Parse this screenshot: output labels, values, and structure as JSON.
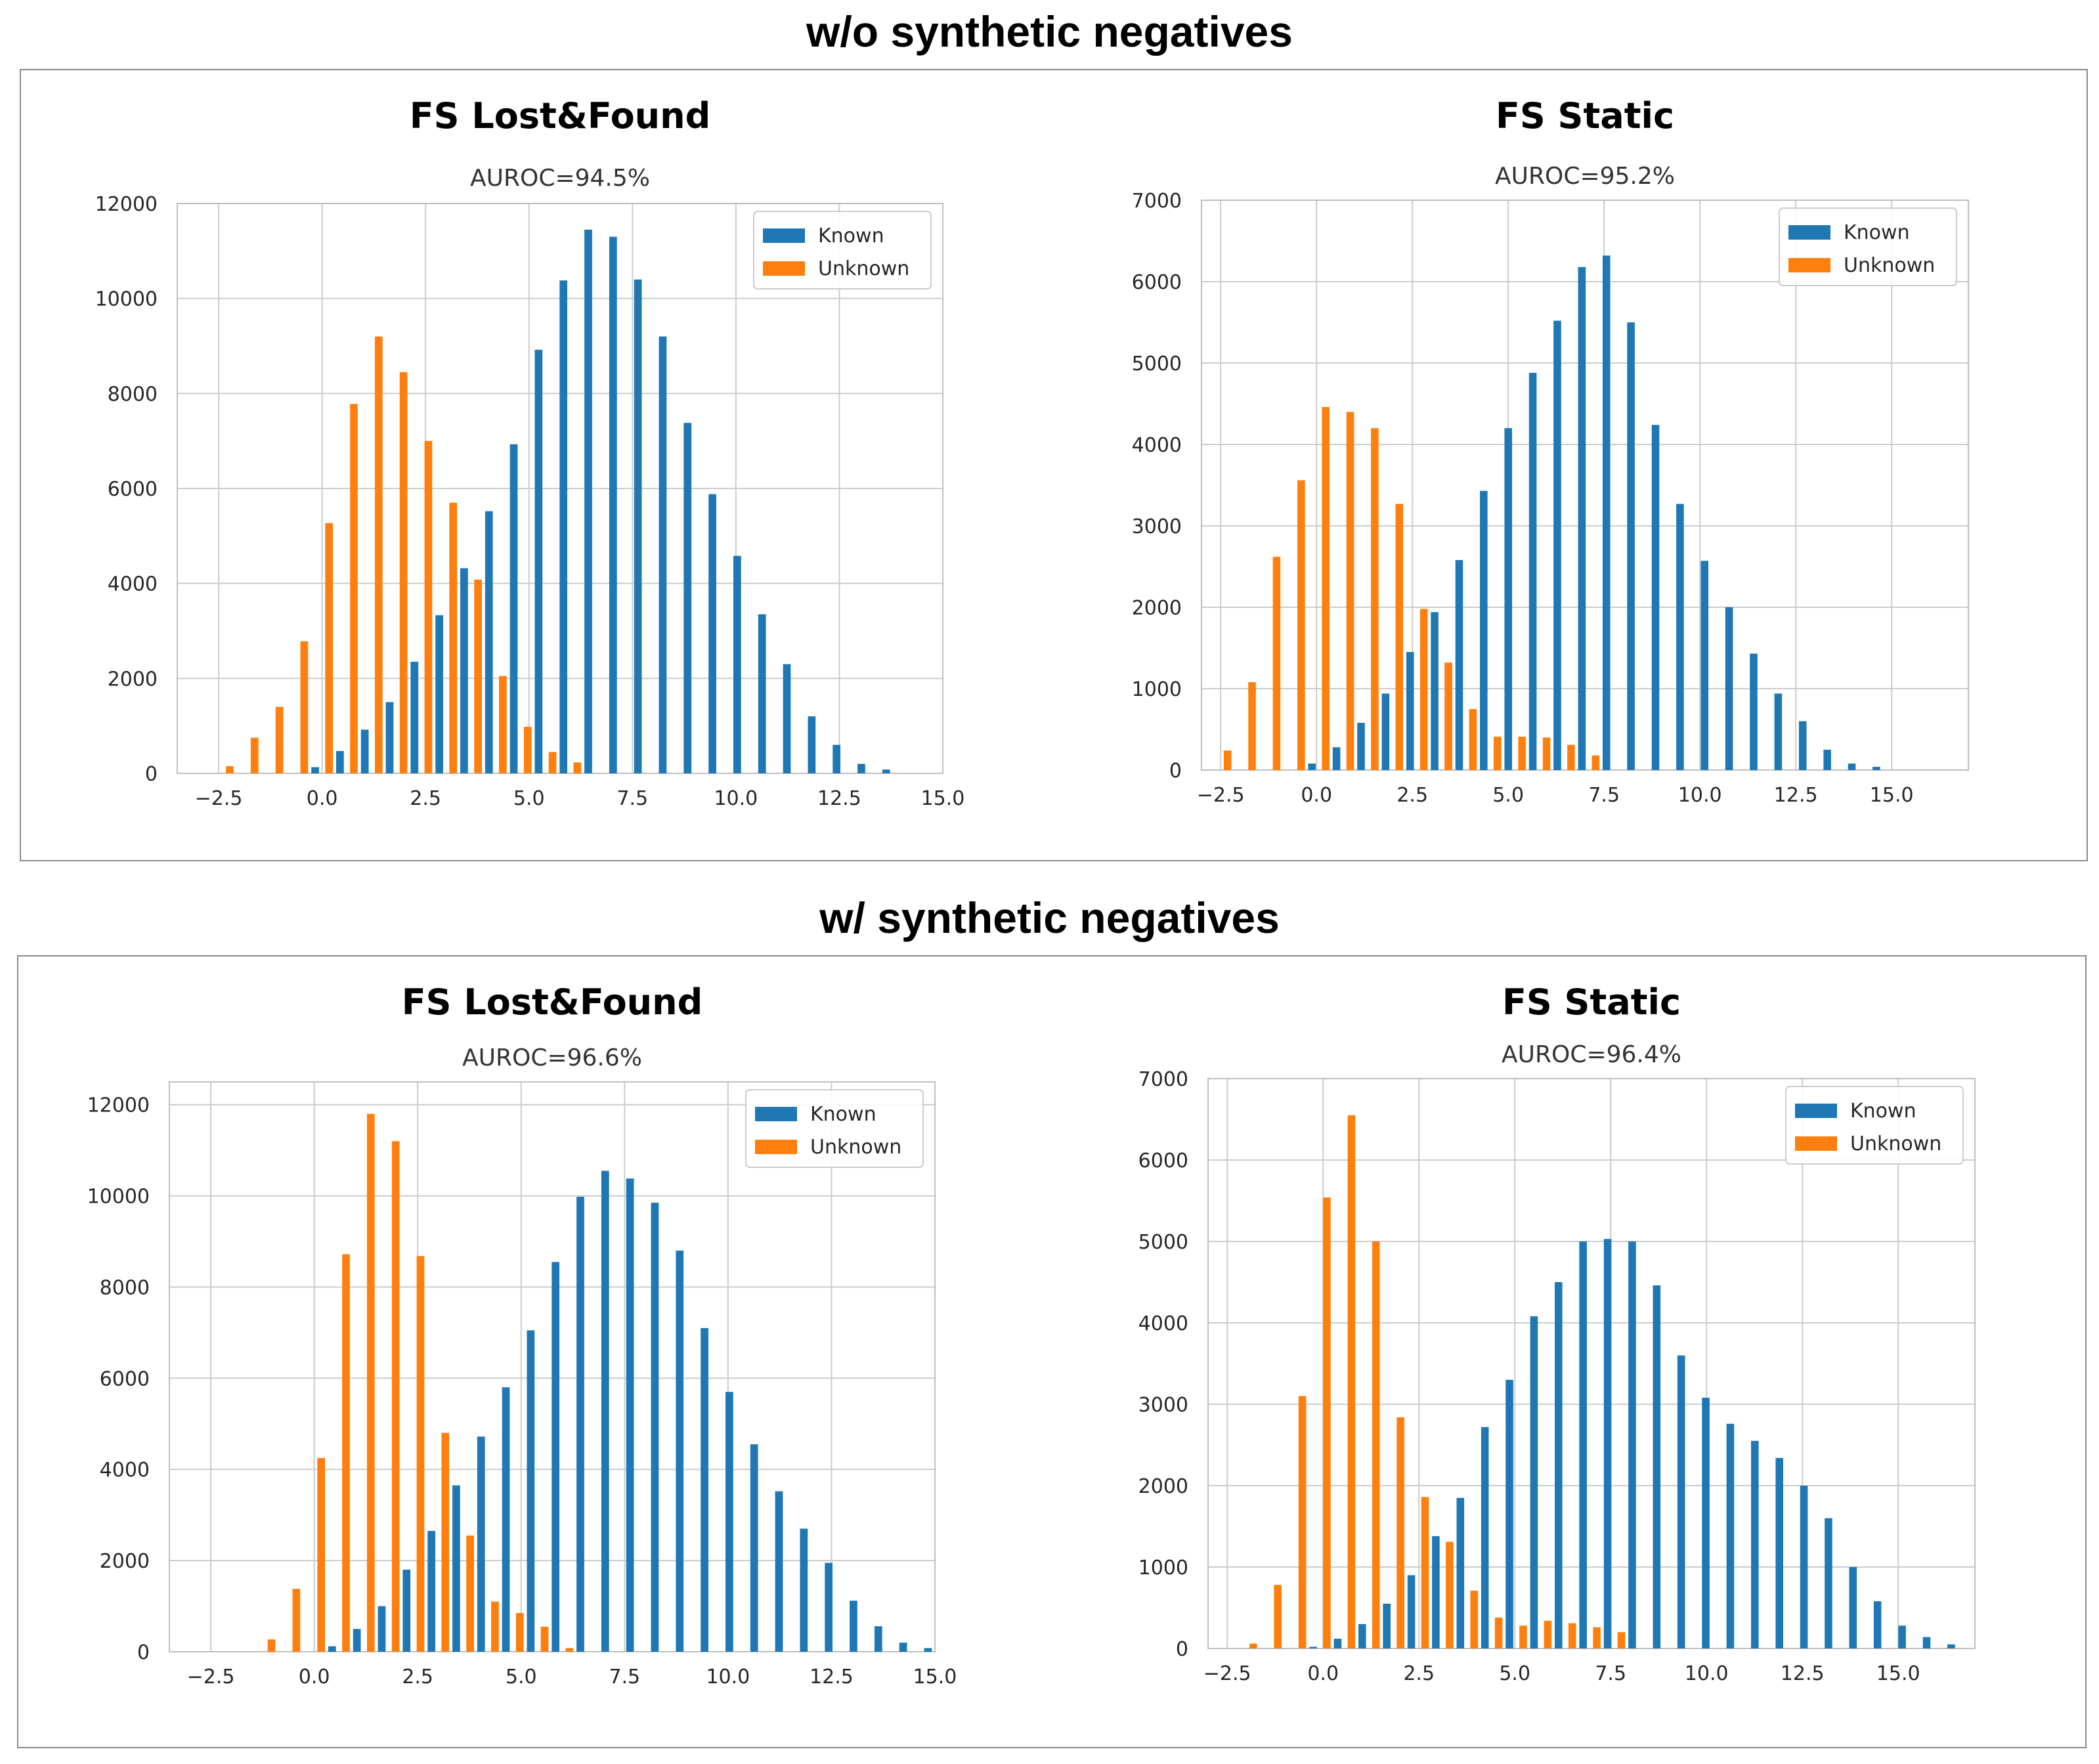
{
  "sections": [
    {
      "title": "w/o synthetic negatives"
    },
    {
      "title": "w/ synthetic negatives"
    }
  ],
  "colors": {
    "known": "#1f77b4",
    "unknown": "#ff7f0e",
    "grid": "#cccccc",
    "tick_text": "#262626",
    "title_text": "#000000"
  },
  "chart_data": [
    {
      "type": "bar",
      "title": "FS Lost&Found",
      "subtitle": "AUROC=94.5%",
      "xlim": [
        -3.5,
        15.0
      ],
      "ylim": [
        0,
        12000
      ],
      "xticks": [
        "−2.5",
        "0.0",
        "2.5",
        "5.0",
        "7.5",
        "10.0",
        "12.5",
        "15.0"
      ],
      "xtick_values": [
        -2.5,
        0.0,
        2.5,
        5.0,
        7.5,
        10.0,
        12.5,
        15.0
      ],
      "yticks": [
        "0",
        "2000",
        "4000",
        "6000",
        "8000",
        "10000",
        "12000"
      ],
      "ytick_values": [
        0,
        2000,
        4000,
        6000,
        8000,
        10000,
        12000
      ],
      "bin_start": -3.0,
      "bin_width": 0.6,
      "legend": {
        "position": "top-right",
        "entries": [
          "Known",
          "Unknown"
        ]
      },
      "series": [
        {
          "name": "Known",
          "values": [
            0,
            0,
            0,
            0,
            130,
            470,
            920,
            1500,
            2350,
            3330,
            4320,
            5520,
            6930,
            8920,
            10380,
            11450,
            11300,
            10400,
            9200,
            7380,
            5880,
            4580,
            3350,
            2300,
            1200,
            600,
            200,
            80,
            0,
            0
          ]
        },
        {
          "name": "Unknown",
          "values": [
            0,
            150,
            750,
            1400,
            2780,
            5270,
            7780,
            9200,
            8450,
            7000,
            5700,
            4080,
            2050,
            980,
            450,
            230,
            0,
            0,
            0,
            0,
            0,
            0,
            0,
            0,
            0,
            0,
            0,
            0,
            0,
            0
          ]
        }
      ]
    },
    {
      "type": "bar",
      "title": "FS Static",
      "subtitle": "AUROC=95.2%",
      "xlim": [
        -3.0,
        17.0
      ],
      "ylim": [
        0,
        7000
      ],
      "xticks": [
        "−2.5",
        "0.0",
        "2.5",
        "5.0",
        "7.5",
        "10.0",
        "12.5",
        "15.0"
      ],
      "xtick_values": [
        -2.5,
        0.0,
        2.5,
        5.0,
        7.5,
        10.0,
        12.5,
        15.0
      ],
      "yticks": [
        "0",
        "1000",
        "2000",
        "3000",
        "4000",
        "5000",
        "6000",
        "7000"
      ],
      "ytick_values": [
        0,
        1000,
        2000,
        3000,
        4000,
        5000,
        6000,
        7000
      ],
      "bin_start": -2.5,
      "bin_width": 0.64,
      "legend": {
        "position": "top-right",
        "entries": [
          "Known",
          "Unknown"
        ]
      },
      "series": [
        {
          "name": "Known",
          "values": [
            0,
            0,
            0,
            80,
            280,
            580,
            940,
            1450,
            1940,
            2580,
            3430,
            4200,
            4880,
            5520,
            6180,
            6320,
            5500,
            4240,
            3270,
            2570,
            2000,
            1430,
            940,
            600,
            250,
            80,
            40,
            0,
            0,
            0
          ]
        },
        {
          "name": "Unknown",
          "values": [
            240,
            1080,
            2620,
            3560,
            4460,
            4400,
            4200,
            3270,
            1980,
            1320,
            750,
            410,
            410,
            400,
            310,
            180,
            0,
            0,
            0,
            0,
            0,
            0,
            0,
            0,
            0,
            0,
            0,
            0,
            0,
            0
          ]
        }
      ]
    },
    {
      "type": "bar",
      "title": "FS Lost&Found",
      "subtitle": "AUROC=96.6%",
      "xlim": [
        -3.5,
        15.0
      ],
      "ylim": [
        0,
        12500
      ],
      "xticks": [
        "−2.5",
        "0.0",
        "2.5",
        "5.0",
        "7.5",
        "10.0",
        "12.5",
        "15.0"
      ],
      "xtick_values": [
        -2.5,
        0.0,
        2.5,
        5.0,
        7.5,
        10.0,
        12.5,
        15.0
      ],
      "yticks": [
        "0",
        "2000",
        "4000",
        "6000",
        "8000",
        "10000",
        "12000"
      ],
      "ytick_values": [
        0,
        2000,
        4000,
        6000,
        8000,
        10000,
        12000
      ],
      "bin_start": -3.0,
      "bin_width": 0.6,
      "legend": {
        "position": "top-right",
        "entries": [
          "Known",
          "Unknown"
        ]
      },
      "series": [
        {
          "name": "Known",
          "values": [
            0,
            0,
            0,
            0,
            0,
            120,
            500,
            1000,
            1800,
            2650,
            3650,
            4720,
            5800,
            7050,
            8550,
            9980,
            10550,
            10380,
            9850,
            8800,
            7100,
            5700,
            4550,
            3520,
            2700,
            1950,
            1120,
            560,
            200,
            80
          ]
        },
        {
          "name": "Unknown",
          "values": [
            0,
            0,
            0,
            270,
            1380,
            4250,
            8720,
            11800,
            11200,
            8680,
            4800,
            2550,
            1100,
            850,
            550,
            80,
            0,
            0,
            0,
            0,
            0,
            0,
            0,
            0,
            0,
            0,
            0,
            0,
            0,
            0
          ]
        }
      ]
    },
    {
      "type": "bar",
      "title": "FS Static",
      "subtitle": "AUROC=96.4%",
      "xlim": [
        -3.0,
        17.0
      ],
      "ylim": [
        0,
        7000
      ],
      "xticks": [
        "−2.5",
        "0.0",
        "2.5",
        "5.0",
        "7.5",
        "10.0",
        "12.5",
        "15.0"
      ],
      "xtick_values": [
        -2.5,
        0.0,
        2.5,
        5.0,
        7.5,
        10.0,
        12.5,
        15.0
      ],
      "yticks": [
        "0",
        "1000",
        "2000",
        "3000",
        "4000",
        "5000",
        "6000",
        "7000"
      ],
      "ytick_values": [
        0,
        1000,
        2000,
        3000,
        4000,
        5000,
        6000,
        7000
      ],
      "bin_start": -2.0,
      "bin_width": 0.64,
      "legend": {
        "position": "top-right",
        "entries": [
          "Known",
          "Unknown"
        ]
      },
      "series": [
        {
          "name": "Known",
          "values": [
            0,
            0,
            20,
            120,
            300,
            550,
            900,
            1380,
            1850,
            2720,
            3300,
            4080,
            4500,
            5000,
            5030,
            5000,
            4460,
            3600,
            3080,
            2760,
            2550,
            2340,
            2000,
            1600,
            1000,
            580,
            280,
            140,
            50,
            0
          ]
        },
        {
          "name": "Unknown",
          "values": [
            60,
            780,
            3100,
            5540,
            6550,
            5000,
            2840,
            1860,
            1310,
            710,
            380,
            280,
            340,
            310,
            260,
            200,
            0,
            0,
            0,
            0,
            0,
            0,
            0,
            0,
            0,
            0,
            0,
            0,
            0,
            0
          ]
        }
      ]
    }
  ]
}
